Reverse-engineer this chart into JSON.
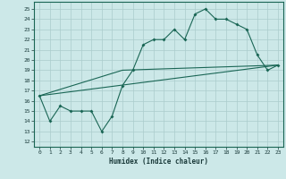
{
  "xlabel": "Humidex (Indice chaleur)",
  "bg_color": "#cce8e8",
  "grid_color": "#aacccc",
  "line_color": "#1a6655",
  "xlim": [
    -0.5,
    23.5
  ],
  "ylim": [
    11.5,
    25.7
  ],
  "yticks": [
    12,
    13,
    14,
    15,
    16,
    17,
    18,
    19,
    20,
    21,
    22,
    23,
    24,
    25
  ],
  "xticks": [
    0,
    1,
    2,
    3,
    4,
    5,
    6,
    7,
    8,
    9,
    10,
    11,
    12,
    13,
    14,
    15,
    16,
    17,
    18,
    19,
    20,
    21,
    22,
    23
  ],
  "series1_x": [
    0,
    1,
    2,
    3,
    4,
    5,
    6,
    7,
    8,
    9,
    10,
    11,
    12,
    13,
    14,
    15,
    16,
    17,
    18,
    19,
    20,
    21,
    22,
    23
  ],
  "series1_y": [
    16.5,
    14.0,
    15.5,
    15.0,
    15.0,
    15.0,
    13.0,
    14.5,
    17.5,
    19.0,
    21.5,
    22.0,
    22.0,
    23.0,
    22.0,
    24.5,
    25.0,
    24.0,
    24.0,
    23.5,
    23.0,
    20.5,
    19.0,
    19.5
  ],
  "series2_x": [
    0,
    23
  ],
  "series2_y": [
    16.5,
    19.5
  ],
  "series3_x": [
    0,
    8,
    23
  ],
  "series3_y": [
    16.5,
    19.0,
    19.5
  ]
}
